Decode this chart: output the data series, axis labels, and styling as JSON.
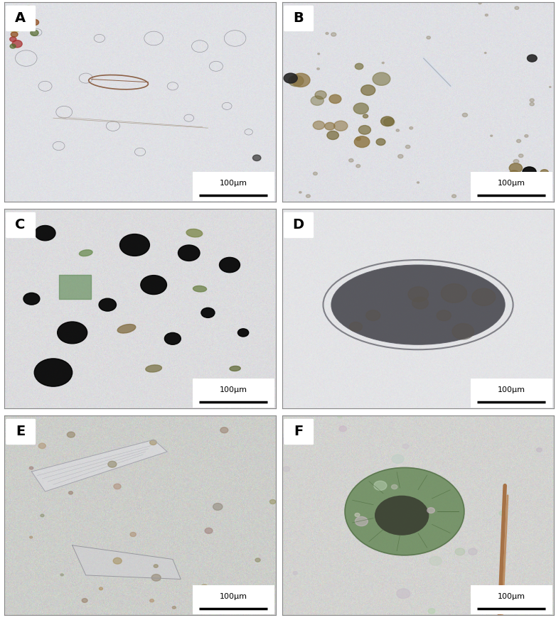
{
  "panels": [
    "A",
    "B",
    "C",
    "D",
    "E",
    "F"
  ],
  "scale_label": "100μm",
  "layout": {
    "rows": 3,
    "cols": 2
  },
  "label_fontsize": 14,
  "scale_fontsize": 8,
  "figure_bg": "#ffffff"
}
